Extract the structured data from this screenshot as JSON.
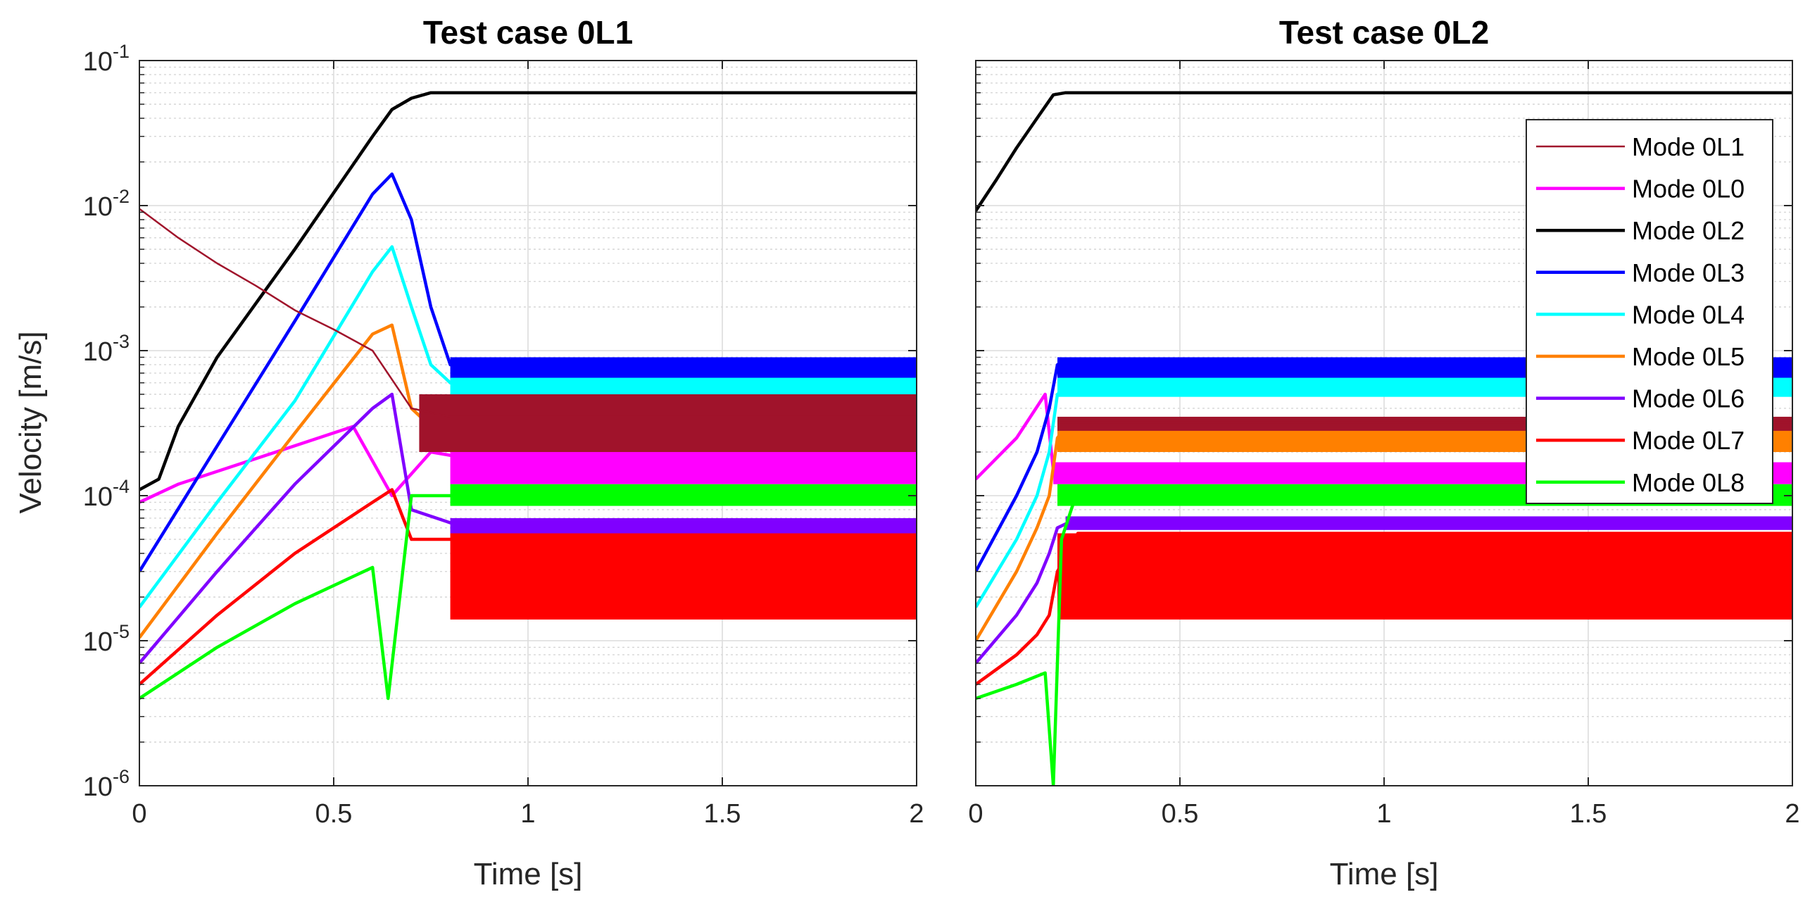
{
  "chart_data": [
    {
      "type": "line",
      "title": "Test case 0L1",
      "xlabel": "Time [s]",
      "ylabel": "Velocity [m/s]",
      "xlim": [
        0,
        2
      ],
      "ylim": [
        1e-06,
        0.1
      ],
      "yscale": "log",
      "grid": true,
      "xticks": [
        0,
        0.5,
        1,
        1.5,
        2
      ],
      "xtick_labels": [
        "0",
        "0.5",
        "1",
        "1.5",
        "2"
      ],
      "ytick_labels": [
        {
          "base": "10",
          "exp": "-6"
        },
        {
          "base": "10",
          "exp": "-5"
        },
        {
          "base": "10",
          "exp": "-4"
        },
        {
          "base": "10",
          "exp": "-3"
        },
        {
          "base": "10",
          "exp": "-2"
        },
        {
          "base": "10",
          "exp": "-1"
        }
      ],
      "series": [
        {
          "name": "Mode 0L0",
          "color": "#ff00ff",
          "x": [
            0,
            0.1,
            0.3,
            0.55,
            0.65,
            0.75,
            0.85,
            2
          ],
          "y": [
            9e-05,
            0.00012,
            0.00018,
            0.0003,
            0.0001,
            0.0002,
            0.00018,
            0.00018
          ],
          "band_start": 0.8,
          "band": [
            0.00012,
            0.00022
          ]
        },
        {
          "name": "Mode 0L2",
          "color": "#000000",
          "x": [
            0,
            0.05,
            0.1,
            0.2,
            0.4,
            0.6,
            0.65,
            0.7,
            0.75,
            2
          ],
          "y": [
            0.00011,
            0.00013,
            0.0003,
            0.0009,
            0.005,
            0.03,
            0.046,
            0.055,
            0.06,
            0.06
          ]
        },
        {
          "name": "Mode 0L3",
          "color": "#0000ff",
          "x": [
            0,
            0.2,
            0.4,
            0.6,
            0.65,
            0.7,
            0.75,
            0.8,
            2
          ],
          "y": [
            3e-05,
            0.00022,
            0.0016,
            0.012,
            0.0165,
            0.008,
            0.002,
            0.0008,
            0.00075
          ],
          "band_start": 0.8,
          "band": [
            0.00062,
            0.0009
          ]
        },
        {
          "name": "Mode 0L4",
          "color": "#00ffff",
          "x": [
            0,
            0.2,
            0.4,
            0.6,
            0.65,
            0.7,
            0.75,
            0.8,
            2
          ],
          "y": [
            1.7e-05,
            9e-05,
            0.00045,
            0.0035,
            0.0052,
            0.002,
            0.0008,
            0.0006,
            0.00055
          ],
          "band_start": 0.8,
          "band": [
            0.00048,
            0.00065
          ]
        },
        {
          "name": "Mode 0L5",
          "color": "#ff8000",
          "x": [
            0,
            0.2,
            0.4,
            0.6,
            0.65,
            0.7,
            0.75,
            0.8,
            2
          ],
          "y": [
            1.05e-05,
            5.5e-05,
            0.00027,
            0.0013,
            0.0015,
            0.0004,
            0.0003,
            0.00027,
            0.00026
          ],
          "band_start": 0.8,
          "band": [
            0.00021,
            0.00034
          ]
        },
        {
          "name": "Mode 0L6",
          "color": "#8000ff",
          "x": [
            0,
            0.2,
            0.4,
            0.6,
            0.65,
            0.7,
            0.8,
            2
          ],
          "y": [
            7e-06,
            3e-05,
            0.00012,
            0.0004,
            0.0005,
            8e-05,
            6.5e-05,
            6.5e-05
          ],
          "band_start": 0.8,
          "band": [
            5.5e-05,
            7e-05
          ]
        },
        {
          "name": "Mode 0L7",
          "color": "#ff0000",
          "x": [
            0,
            0.2,
            0.4,
            0.6,
            0.65,
            0.7,
            0.8,
            2
          ],
          "y": [
            5e-06,
            1.5e-05,
            4e-05,
            9e-05,
            0.00011,
            5e-05,
            5e-05,
            5e-05
          ],
          "band_start": 0.8,
          "band": [
            1.4e-05,
            5.5e-05
          ]
        },
        {
          "name": "Mode 0L8",
          "color": "#00ff00",
          "x": [
            0,
            0.2,
            0.4,
            0.6,
            0.64,
            0.7,
            0.8,
            2
          ],
          "y": [
            4e-06,
            9e-06,
            1.8e-05,
            3.2e-05,
            4e-06,
            0.0001,
            0.0001,
            0.0001
          ],
          "band_start": 0.8,
          "band": [
            8.5e-05,
            0.00012
          ]
        },
        {
          "name": "Mode 0L1",
          "color": "#a0132b",
          "x": [
            0,
            0.1,
            0.2,
            0.3,
            0.4,
            0.5,
            0.6,
            0.7,
            0.8,
            2
          ],
          "y": [
            0.0095,
            0.006,
            0.004,
            0.0028,
            0.0019,
            0.0014,
            0.001,
            0.0004,
            0.00035,
            0.00035
          ],
          "band_start": 0.72,
          "band": [
            0.0002,
            0.0005
          ]
        }
      ]
    },
    {
      "type": "line",
      "title": "Test case 0L2",
      "xlabel": "Time [s]",
      "xlim": [
        0,
        2
      ],
      "ylim": [
        1e-06,
        0.1
      ],
      "yscale": "log",
      "grid": true,
      "xticks": [
        0,
        0.5,
        1,
        1.5,
        2
      ],
      "xtick_labels": [
        "0",
        "0.5",
        "1",
        "1.5",
        "2"
      ],
      "legend_position": "top-right",
      "legend": [
        "Mode 0L1",
        "Mode 0L0",
        "Mode 0L2",
        "Mode 0L3",
        "Mode 0L4",
        "Mode 0L5",
        "Mode 0L6",
        "Mode 0L7",
        "Mode 0L8"
      ],
      "series": [
        {
          "name": "Mode 0L0",
          "color": "#ff00ff",
          "x": [
            0,
            0.1,
            0.17,
            0.19,
            0.22,
            2
          ],
          "y": [
            0.00013,
            0.00025,
            0.0005,
            0.00015,
            0.00013,
            0.00013
          ],
          "band_start": 0.19,
          "band": [
            0.00012,
            0.00017
          ]
        },
        {
          "name": "Mode 0L2",
          "color": "#000000",
          "x": [
            0,
            0.05,
            0.1,
            0.15,
            0.19,
            0.22,
            2
          ],
          "y": [
            0.0092,
            0.015,
            0.025,
            0.04,
            0.058,
            0.06,
            0.06
          ]
        },
        {
          "name": "Mode 0L3",
          "color": "#0000ff",
          "x": [
            0,
            0.1,
            0.15,
            0.18,
            0.2,
            0.22,
            2
          ],
          "y": [
            3e-05,
            0.0001,
            0.0002,
            0.0004,
            0.0008,
            0.00085,
            0.0008
          ],
          "band_start": 0.2,
          "band": [
            0.0006,
            0.0009
          ]
        },
        {
          "name": "Mode 0L4",
          "color": "#00ffff",
          "x": [
            0,
            0.1,
            0.15,
            0.18,
            0.2,
            0.22,
            2
          ],
          "y": [
            1.7e-05,
            5e-05,
            0.0001,
            0.0002,
            0.0005,
            0.00055,
            0.00055
          ],
          "band_start": 0.2,
          "band": [
            0.00048,
            0.00065
          ]
        },
        {
          "name": "Mode 0L5",
          "color": "#ff8000",
          "x": [
            0,
            0.1,
            0.15,
            0.18,
            0.2,
            0.22,
            2
          ],
          "y": [
            1e-05,
            3e-05,
            6e-05,
            0.0001,
            0.00025,
            0.0003,
            0.00027
          ],
          "band_start": 0.2,
          "band": [
            0.0002,
            0.00032
          ]
        },
        {
          "name": "Mode 0L6",
          "color": "#8000ff",
          "x": [
            0,
            0.1,
            0.15,
            0.18,
            0.2,
            0.25,
            2
          ],
          "y": [
            7e-06,
            1.5e-05,
            2.5e-05,
            4e-05,
            6e-05,
            7e-05,
            7e-05
          ],
          "band_start": 0.22,
          "band": [
            5.8e-05,
            7.2e-05
          ]
        },
        {
          "name": "Mode 0L7",
          "color": "#ff0000",
          "x": [
            0,
            0.1,
            0.15,
            0.18,
            0.2,
            0.25,
            2
          ],
          "y": [
            5e-06,
            8e-06,
            1.1e-05,
            1.5e-05,
            3e-05,
            5.5e-05,
            5.5e-05
          ],
          "band_start": 0.2,
          "band": [
            1.4e-05,
            5.5e-05
          ]
        },
        {
          "name": "Mode 0L8",
          "color": "#00ff00",
          "x": [
            0,
            0.1,
            0.17,
            0.19,
            0.21,
            0.25,
            2
          ],
          "y": [
            4e-06,
            5e-06,
            6e-06,
            1e-06,
            5e-05,
            0.00011,
            0.00011
          ],
          "band_start": 0.2,
          "band": [
            8.5e-05,
            0.00012
          ]
        },
        {
          "name": "Mode 0L1",
          "color": "#a0132b",
          "x": [
            0.2,
            2
          ],
          "y": [
            0.00032,
            0.00032
          ],
          "band_start": 0.2,
          "band": [
            0.00028,
            0.00035
          ]
        }
      ]
    }
  ]
}
